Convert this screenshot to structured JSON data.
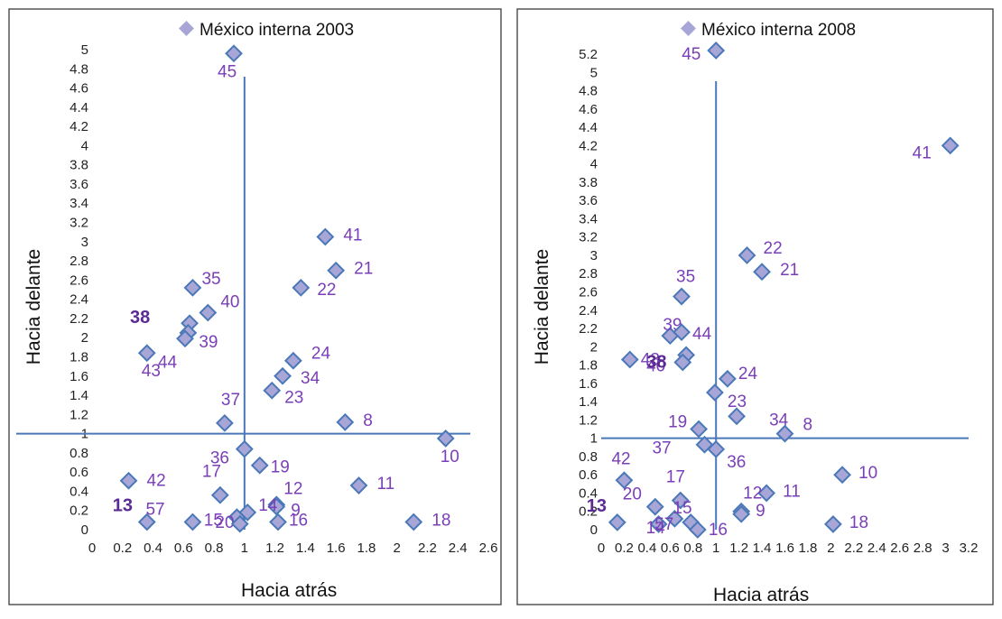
{
  "colors": {
    "marker_fill": "#a8a6d6",
    "marker_stroke": "#4a78b8",
    "ref_line": "#4a78b8",
    "label": "#7a3fb8",
    "label_bold": "#5b2a92",
    "frame": "#555555"
  },
  "chart_data": [
    {
      "type": "scatter",
      "legend": "México interna 2003",
      "legend_position": "top",
      "xlabel": "Hacia atrás",
      "ylabel": "Hacia delante",
      "xlim": [
        0,
        2.6
      ],
      "ylim": [
        0,
        5
      ],
      "x_ticks": [
        "0",
        "0.2",
        "0.4",
        "0.6",
        "0.8",
        "1",
        "1.2",
        "1.4",
        "1.6",
        "1.8",
        "2",
        "2.2",
        "2.4",
        "2.6"
      ],
      "x_tick_values": [
        0,
        0.2,
        0.4,
        0.6,
        0.8,
        1,
        1.2,
        1.4,
        1.6,
        1.8,
        2,
        2.2,
        2.4,
        2.6
      ],
      "y_ticks": [
        "0",
        "0.2",
        "0.4",
        "0.6",
        "0.8",
        "1",
        "1.2",
        "1.4",
        "1.6",
        "1.8",
        "2",
        "2.2",
        "2.4",
        "2.6",
        "2.8",
        "3",
        "3.2",
        "3.4",
        "3.6",
        "3.8",
        "4",
        "4.2",
        "4.4",
        "4.6",
        "4.8",
        "5"
      ],
      "y_tick_values": [
        0,
        0.2,
        0.4,
        0.6,
        0.8,
        1,
        1.2,
        1.4,
        1.6,
        1.8,
        2,
        2.2,
        2.4,
        2.6,
        2.8,
        3,
        3.2,
        3.4,
        3.6,
        3.8,
        4,
        4.2,
        4.4,
        4.6,
        4.8,
        5
      ],
      "ref_lines": {
        "x": 1.0,
        "y": 1.0
      },
      "points": [
        {
          "label": "45",
          "x": 0.93,
          "y": 4.96
        },
        {
          "label": "41",
          "x": 1.53,
          "y": 3.05
        },
        {
          "label": "21",
          "x": 1.6,
          "y": 2.7
        },
        {
          "label": "22",
          "x": 1.37,
          "y": 2.52
        },
        {
          "label": "35",
          "x": 0.66,
          "y": 2.52
        },
        {
          "label": "40",
          "x": 0.76,
          "y": 2.26
        },
        {
          "label": "38",
          "x": 0.64,
          "y": 2.15,
          "bold": true
        },
        {
          "label": "39",
          "x": 0.63,
          "y": 2.05
        },
        {
          "label": "44",
          "x": 0.61,
          "y": 1.99
        },
        {
          "label": "43",
          "x": 0.36,
          "y": 1.84
        },
        {
          "label": "24",
          "x": 1.32,
          "y": 1.76
        },
        {
          "label": "34",
          "x": 1.25,
          "y": 1.6
        },
        {
          "label": "23",
          "x": 1.18,
          "y": 1.45
        },
        {
          "label": "37",
          "x": 0.87,
          "y": 1.11
        },
        {
          "label": "8",
          "x": 1.66,
          "y": 1.12
        },
        {
          "label": "10",
          "x": 2.32,
          "y": 0.95
        },
        {
          "label": "36",
          "x": 1.0,
          "y": 0.84
        },
        {
          "label": "19",
          "x": 1.1,
          "y": 0.67
        },
        {
          "label": "42",
          "x": 0.24,
          "y": 0.51
        },
        {
          "label": "11",
          "x": 1.75,
          "y": 0.46
        },
        {
          "label": "17",
          "x": 0.84,
          "y": 0.36
        },
        {
          "label": "13",
          "x": 0.36,
          "y": 0.08,
          "bold": true
        },
        {
          "label": "12",
          "x": 1.21,
          "y": 0.26
        },
        {
          "label": "9",
          "x": 1.21,
          "y": 0.24
        },
        {
          "label": "14",
          "x": 1.02,
          "y": 0.18
        },
        {
          "label": "20",
          "x": 0.95,
          "y": 0.13
        },
        {
          "label": "57",
          "x": 0.66,
          "y": 0.08
        },
        {
          "label": "15",
          "x": 0.97,
          "y": 0.06
        },
        {
          "label": "16",
          "x": 1.22,
          "y": 0.08
        },
        {
          "label": "18",
          "x": 2.11,
          "y": 0.08
        }
      ]
    },
    {
      "type": "scatter",
      "legend": "México interna 2008",
      "legend_position": "top",
      "xlabel": "Hacia atrás",
      "ylabel": "Hacia delante",
      "xlim": [
        0,
        3.2
      ],
      "ylim": [
        0,
        5.2
      ],
      "x_ticks": [
        "0",
        "0.2",
        "0.4",
        "0.6",
        "0.8",
        "1",
        "1.2",
        "1.4",
        "1.6",
        "1.8",
        "2",
        "2.2",
        "2.4",
        "2.6",
        "2.8",
        "3",
        "3.2"
      ],
      "x_tick_values": [
        0,
        0.2,
        0.4,
        0.6,
        0.8,
        1,
        1.2,
        1.4,
        1.6,
        1.8,
        2,
        2.2,
        2.4,
        2.6,
        2.8,
        3,
        3.2
      ],
      "y_ticks": [
        "0",
        "0.2",
        "0.4",
        "0.6",
        "0.8",
        "1",
        "1.2",
        "1.4",
        "1.6",
        "1.8",
        "2",
        "2.2",
        "2.4",
        "2.6",
        "2.8",
        "3",
        "3.2",
        "3.4",
        "3.6",
        "3.8",
        "4",
        "4.2",
        "4.4",
        "4.6",
        "4.8",
        "5",
        "5.2"
      ],
      "y_tick_values": [
        0,
        0.2,
        0.4,
        0.6,
        0.8,
        1,
        1.2,
        1.4,
        1.6,
        1.8,
        2,
        2.2,
        2.4,
        2.6,
        2.8,
        3,
        3.2,
        3.4,
        3.6,
        3.8,
        4,
        4.2,
        4.4,
        4.6,
        4.8,
        5,
        5.2
      ],
      "ref_lines": {
        "x": 1.0,
        "y": 1.0
      },
      "points": [
        {
          "label": "45",
          "x": 1.0,
          "y": 5.24
        },
        {
          "label": "41",
          "x": 3.04,
          "y": 4.2
        },
        {
          "label": "22",
          "x": 1.27,
          "y": 3.0
        },
        {
          "label": "21",
          "x": 1.4,
          "y": 2.82
        },
        {
          "label": "35",
          "x": 0.7,
          "y": 2.55
        },
        {
          "label": "39",
          "x": 0.6,
          "y": 2.12
        },
        {
          "label": "44",
          "x": 0.7,
          "y": 2.16
        },
        {
          "label": "43",
          "x": 0.25,
          "y": 1.86
        },
        {
          "label": "40",
          "x": 0.74,
          "y": 1.91
        },
        {
          "label": "38",
          "x": 0.71,
          "y": 1.83,
          "bold": true
        },
        {
          "label": "24",
          "x": 1.1,
          "y": 1.65
        },
        {
          "label": "23",
          "x": 0.99,
          "y": 1.5
        },
        {
          "label": "34",
          "x": 1.18,
          "y": 1.24
        },
        {
          "label": "19",
          "x": 0.85,
          "y": 1.1
        },
        {
          "label": "8",
          "x": 1.6,
          "y": 1.05
        },
        {
          "label": "37",
          "x": 0.9,
          "y": 0.93
        },
        {
          "label": "36",
          "x": 1.0,
          "y": 0.88
        },
        {
          "label": "10",
          "x": 2.1,
          "y": 0.6
        },
        {
          "label": "42",
          "x": 0.2,
          "y": 0.54
        },
        {
          "label": "11",
          "x": 1.44,
          "y": 0.4
        },
        {
          "label": "17",
          "x": 0.69,
          "y": 0.32
        },
        {
          "label": "20",
          "x": 0.47,
          "y": 0.25
        },
        {
          "label": "15",
          "x": 0.64,
          "y": 0.12
        },
        {
          "label": "12",
          "x": 1.22,
          "y": 0.2
        },
        {
          "label": "9",
          "x": 1.22,
          "y": 0.17
        },
        {
          "label": "13",
          "x": 0.14,
          "y": 0.08,
          "bold": true
        },
        {
          "label": "14",
          "x": 0.5,
          "y": 0.06
        },
        {
          "label": "57",
          "x": 0.78,
          "y": 0.08
        },
        {
          "label": "16",
          "x": 0.84,
          "y": 0.0
        },
        {
          "label": "18",
          "x": 2.02,
          "y": 0.06
        }
      ]
    }
  ]
}
